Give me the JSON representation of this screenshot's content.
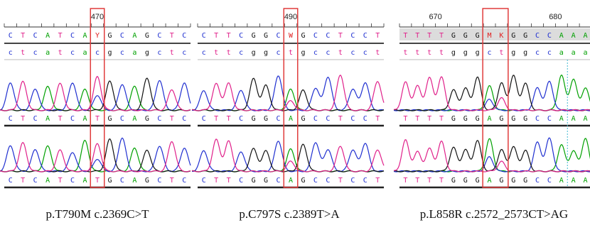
{
  "colors": {
    "A": "#00a000",
    "C": "#1f2fd0",
    "G": "#111111",
    "T": "#e0208a",
    "ambiguous": "#e02020",
    "highlight_box": "#e03c3c",
    "cursor": "#40b8d0"
  },
  "panels": [
    {
      "id": "t790m",
      "ruler_number": "470",
      "top_seq": "CTCATCAYGCAGCTC",
      "lower_seq": "ctcatcacgcagctc",
      "track1_seq": "CTCATCATGCAGCTC",
      "track2_seq": "CTCATCATGCAGCTC",
      "highlight_start": 7,
      "highlight_len": 1,
      "caption": "p.T790M c.2369C>T"
    },
    {
      "id": "c797s",
      "ruler_number": "490",
      "top_seq": "CTTCGGCWGCCTCCT",
      "lower_seq": "cttcggctgcctcct",
      "track1_seq": "CTTCGGCAGCCTCCT",
      "track2_seq": "CTTCGGCAGCCTCCT",
      "highlight_start": 7,
      "highlight_len": 1,
      "caption": "p.C797S c.2389T>A"
    },
    {
      "id": "l858r",
      "ruler_number_1": "670",
      "ruler_number_2": "680",
      "top_seq": "TTTTGGGMKGGCCAAA",
      "lower_seq": "ttttgggctggccaaa",
      "track1_seq": "TTTTGGGAGGGCCAAA",
      "track2_seq": "TTTTGGGAGGGCCAAA",
      "highlight_start": 7,
      "highlight_len": 2,
      "caption": "p.L858R c.2572_2573CT>AG"
    }
  ]
}
